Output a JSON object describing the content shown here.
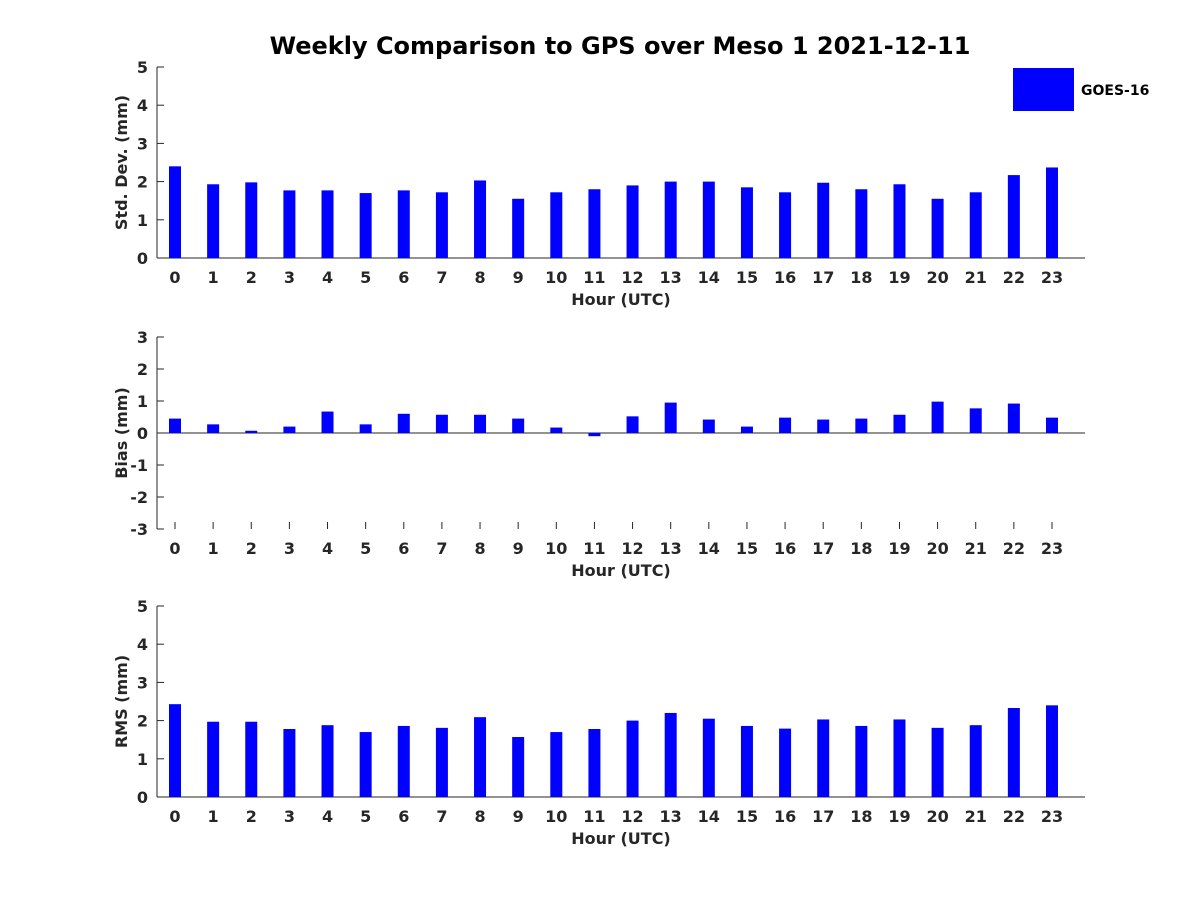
{
  "chart_data": {
    "title": "Weekly Comparison to GPS over Meso 1 2021-12-11",
    "legend": {
      "label": "GOES-16",
      "color": "#0000ff",
      "placement": "top-right"
    },
    "categories": [
      "0",
      "1",
      "2",
      "3",
      "4",
      "5",
      "6",
      "7",
      "8",
      "9",
      "10",
      "11",
      "12",
      "13",
      "14",
      "15",
      "16",
      "17",
      "18",
      "19",
      "20",
      "21",
      "22",
      "23"
    ],
    "panels": [
      {
        "type": "bar",
        "ylabel": "Std. Dev. (mm)",
        "xlabel": "Hour (UTC)",
        "ylim": [
          0,
          5
        ],
        "yticks": [
          "0",
          "1",
          "2",
          "3",
          "4",
          "5"
        ],
        "series": [
          {
            "name": "GOES-16",
            "values": [
              2.4,
              1.93,
              1.98,
              1.77,
              1.77,
              1.7,
              1.77,
              1.72,
              2.03,
              1.55,
              1.72,
              1.8,
              1.9,
              2.0,
              2.0,
              1.85,
              1.72,
              1.97,
              1.8,
              1.93,
              1.55,
              1.72,
              2.17,
              2.37
            ]
          }
        ]
      },
      {
        "type": "bar",
        "ylabel": "Bias (mm)",
        "xlabel": "Hour (UTC)",
        "ylim": [
          -3,
          3
        ],
        "yticks": [
          "-3",
          "-2",
          "-1",
          "0",
          "1",
          "2",
          "3"
        ],
        "series": [
          {
            "name": "GOES-16",
            "values": [
              0.45,
              0.27,
              0.07,
              0.2,
              0.67,
              0.27,
              0.6,
              0.57,
              0.57,
              0.45,
              0.17,
              -0.1,
              0.52,
              0.95,
              0.42,
              0.2,
              0.48,
              0.42,
              0.45,
              0.57,
              0.98,
              0.77,
              0.92,
              0.48
            ]
          }
        ]
      },
      {
        "type": "bar",
        "ylabel": "RMS (mm)",
        "xlabel": "Hour (UTC)",
        "ylim": [
          0,
          5
        ],
        "yticks": [
          "0",
          "1",
          "2",
          "3",
          "4",
          "5"
        ],
        "series": [
          {
            "name": "GOES-16",
            "values": [
              2.43,
              1.97,
              1.97,
              1.78,
              1.88,
              1.7,
              1.86,
              1.81,
              2.09,
              1.57,
              1.7,
              1.78,
              2.0,
              2.2,
              2.05,
              1.86,
              1.79,
              2.03,
              1.86,
              2.03,
              1.81,
              1.88,
              2.33,
              2.4
            ]
          }
        ]
      }
    ]
  }
}
